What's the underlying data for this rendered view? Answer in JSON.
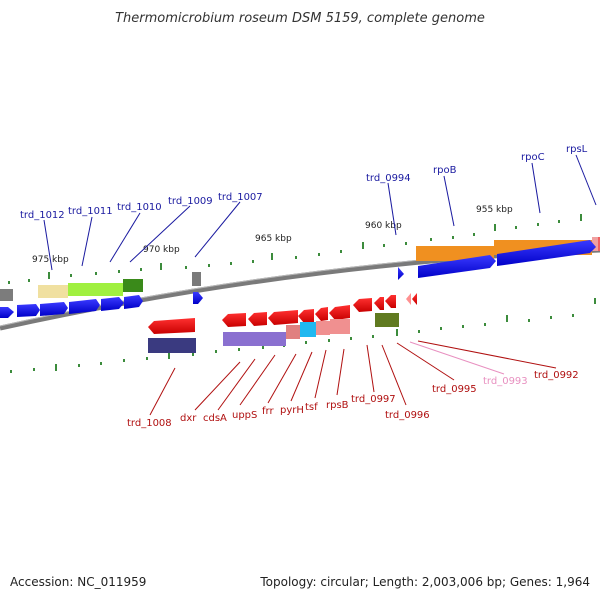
{
  "title": "Thermomicrobium roseum DSM 5159, complete genome",
  "footer": {
    "accession": "Accession: NC_011959",
    "summary": "Topology: circular; Length: 2,003,006 bp; Genes: 1,964"
  },
  "scale_labels": [
    "975 kbp",
    "970 kbp",
    "965 kbp",
    "960 kbp",
    "955 kbp"
  ],
  "upper_labels": [
    "trd_1012",
    "trd_1011",
    "trd_1010",
    "trd_1009",
    "trd_1007",
    "trd_0994",
    "rpoB",
    "rpoC",
    "rpsL"
  ],
  "lower_labels": [
    "trd_1008",
    "dxr",
    "cdsA",
    "uppS",
    "frr",
    "pyrH",
    "tsf",
    "rpsB",
    "trd_0997",
    "trd_0996",
    "trd_0995",
    "trd_0993",
    "trd_0992"
  ],
  "colors": {
    "forward_strand": "#1010e0",
    "reverse_strand": "#e01010",
    "backbone": "#808080",
    "tick": "#3c8c3c",
    "label_blue": "#1a1aa0",
    "label_red": "#b01010",
    "label_pink": "#e890c0"
  }
}
